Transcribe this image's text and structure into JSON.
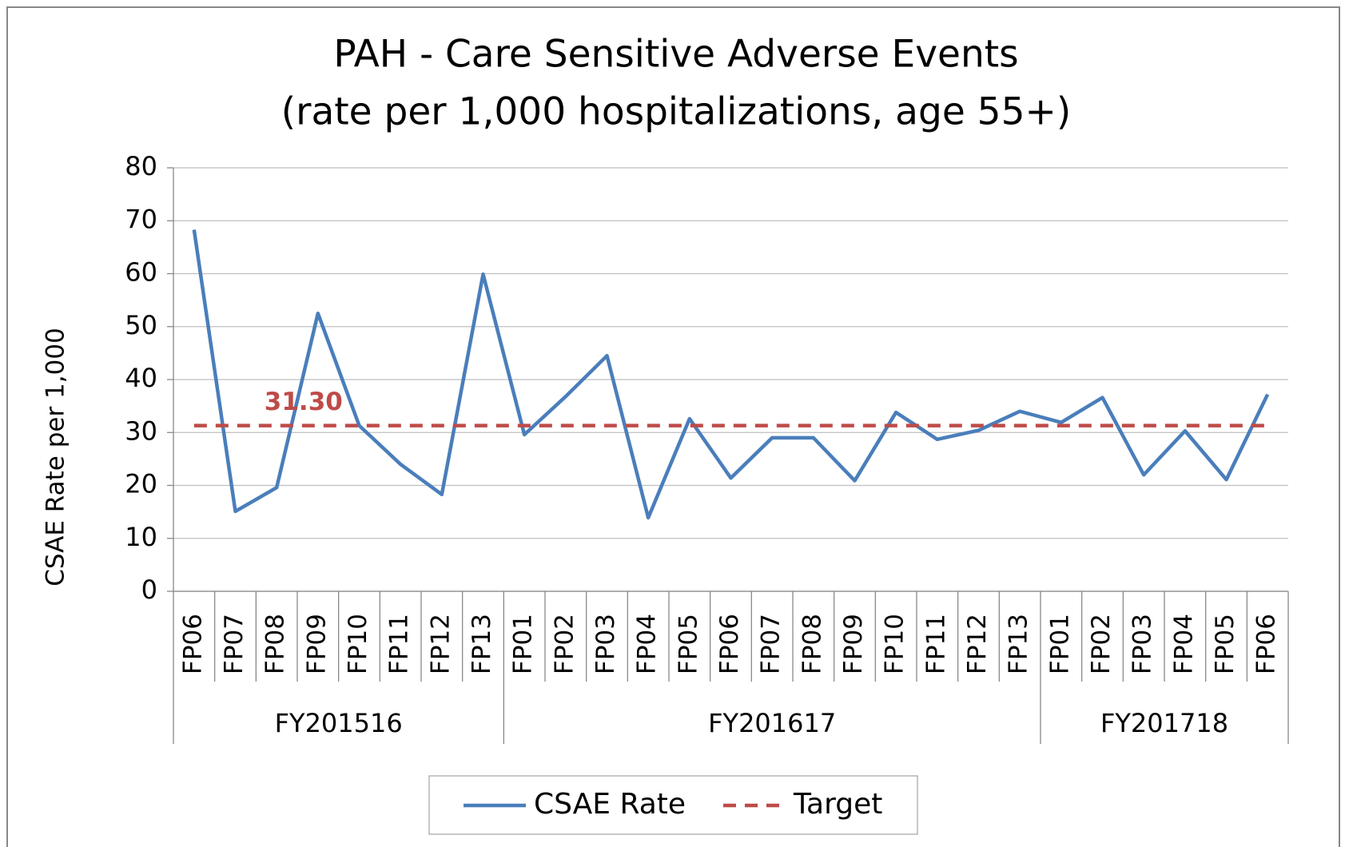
{
  "chart_data": {
    "type": "line",
    "title": "PAH - Care Sensitive Adverse Events",
    "subtitle": "(rate per 1,000 hospitalizations, age 55+)",
    "y_label": "CSAE Rate per 1,000",
    "groups": [
      {
        "name": "FY201516",
        "categories": [
          "FP06",
          "FP07",
          "FP08",
          "FP09",
          "FP10",
          "FP11",
          "FP12",
          "FP13"
        ]
      },
      {
        "name": "FY201617",
        "categories": [
          "FP01",
          "FP02",
          "FP03",
          "FP04",
          "FP05",
          "FP06",
          "FP07",
          "FP08",
          "FP09",
          "FP10",
          "FP11",
          "FP12",
          "FP13"
        ]
      },
      {
        "name": "FY201718",
        "categories": [
          "FP01",
          "FP02",
          "FP03",
          "FP04",
          "FP05",
          "FP06"
        ]
      }
    ],
    "series": [
      {
        "name": "CSAE Rate",
        "color": "#4a7ebb",
        "dashed": false,
        "values": [
          68.3,
          15.1,
          19.6,
          52.5,
          31.3,
          24.0,
          18.3,
          59.9,
          29.6,
          36.8,
          44.5,
          13.9,
          32.6,
          21.4,
          29.0,
          29.0,
          20.9,
          33.8,
          28.7,
          30.4,
          34.0,
          31.9,
          36.6,
          22.0,
          30.3,
          21.1,
          37.2
        ]
      },
      {
        "name": "Target",
        "color": "#be4b48",
        "dashed": true,
        "values": [
          31.3,
          31.3,
          31.3,
          31.3,
          31.3,
          31.3,
          31.3,
          31.3,
          31.3,
          31.3,
          31.3,
          31.3,
          31.3,
          31.3,
          31.3,
          31.3,
          31.3,
          31.3,
          31.3,
          31.3,
          31.3,
          31.3,
          31.3,
          31.3,
          31.3,
          31.3,
          31.3
        ],
        "value_labels": [
          null,
          null,
          null,
          "31.30",
          null,
          null,
          null,
          null,
          null,
          null,
          null,
          null,
          null,
          null,
          null,
          null,
          null,
          null,
          null,
          null,
          null,
          null,
          null,
          null,
          null,
          null,
          null
        ]
      }
    ],
    "ylim": [
      0,
      80
    ],
    "yticks": [
      0,
      10,
      20,
      30,
      40,
      50,
      60,
      70,
      80
    ],
    "grid": true,
    "legend": "bottom"
  }
}
